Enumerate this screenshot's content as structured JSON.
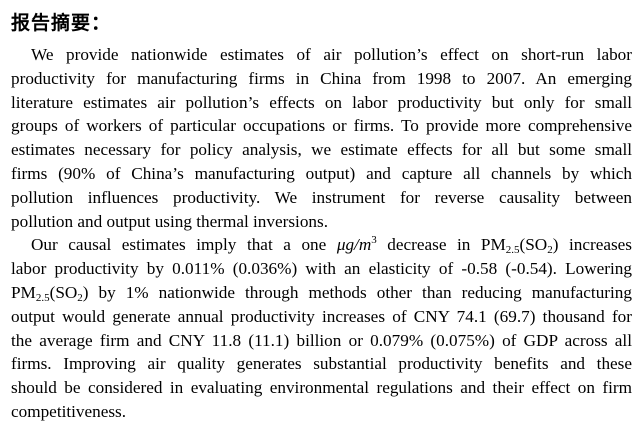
{
  "title": "报告摘要：",
  "paragraphs": [
    {
      "lines": [
        [
          [
            "We provide nationwide estimates of air pollution’s effect on short-run labor"
          ]
        ],
        [
          [
            "productivity for manufacturing firms in China from 1998 to 2007. An emerging"
          ]
        ],
        [
          [
            "literature estimates air pollution’s effects on labor productivity but only for small"
          ]
        ],
        [
          [
            "groups of workers of particular occupations or firms. To provide more comprehensive"
          ]
        ],
        [
          [
            "estimates necessary for policy analysis, we estimate effects for all but some small"
          ]
        ],
        [
          [
            "firms (90% of China’s manufacturing output) and capture all channels by which"
          ]
        ],
        [
          [
            "pollution influences productivity. We instrument for reverse causality between"
          ]
        ],
        [
          [
            "pollution and output using thermal inversions."
          ]
        ]
      ]
    },
    {
      "lines": [
        [
          [
            "Our causal estimates imply that a one "
          ],
          [
            "μg/m",
            "it"
          ],
          [
            "3",
            "sup"
          ],
          [
            "  decrease in PM"
          ],
          [
            "2.5",
            "sub"
          ],
          [
            "(SO"
          ],
          [
            "2",
            "sub"
          ],
          [
            ")  increases"
          ]
        ],
        [
          [
            "labor productivity by 0.011% (0.036%) with an elasticity of -0.58 (-0.54). Lowering"
          ]
        ],
        [
          [
            "PM"
          ],
          [
            "2.5",
            "sub"
          ],
          [
            "(SO"
          ],
          [
            "2",
            "sub"
          ],
          [
            ")  by 1% nationwide through methods other than reducing manufacturing"
          ]
        ],
        [
          [
            "output would generate annual productivity increases of CNY 74.1 (69.7) thousand for"
          ]
        ],
        [
          [
            "the average firm and CNY 11.8 (11.1) billion or 0.079% (0.075%) of GDP across all"
          ]
        ],
        [
          [
            "firms. Improving air quality generates substantial productivity benefits and these"
          ]
        ],
        [
          [
            "should be considered in evaluating environmental regulations and their effect on firm"
          ]
        ],
        [
          [
            "competitiveness."
          ]
        ]
      ]
    }
  ]
}
